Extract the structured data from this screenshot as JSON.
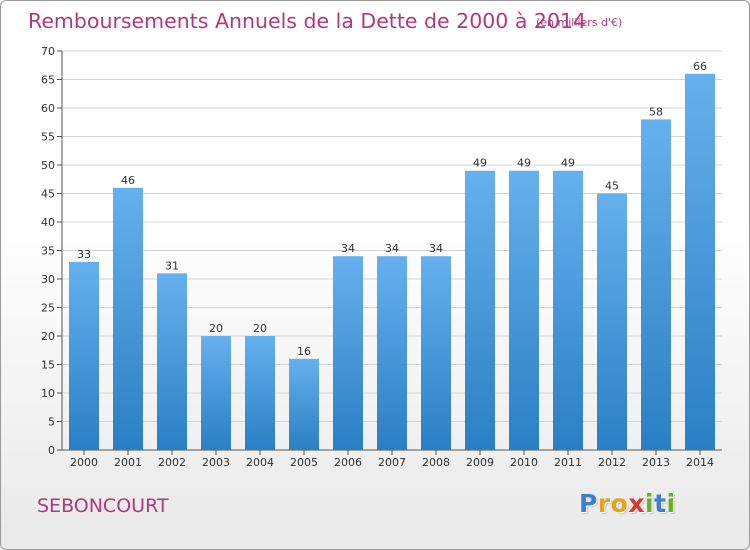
{
  "header": {
    "title": "Remboursements Annuels de la Dette de 2000 à 2014",
    "subtitle": "(en milliers d'€)"
  },
  "footer": {
    "city": "SEBONCOURT",
    "logo_letters": [
      {
        "char": "P",
        "color": "#3b7fd1"
      },
      {
        "char": "r",
        "color": "#e8a21c"
      },
      {
        "char": "o",
        "color": "#e8a21c"
      },
      {
        "char": "x",
        "color": "#d93a2b"
      },
      {
        "char": "i",
        "color": "#6ab023"
      },
      {
        "char": "t",
        "color": "#3b7fd1"
      },
      {
        "char": "i",
        "color": "#6ab023"
      }
    ]
  },
  "colors": {
    "bar_light": "#66b0ee",
    "bar_dark": "#2a7fc4",
    "title": "#b03a78"
  },
  "chart_data": {
    "type": "bar",
    "title": "Remboursements Annuels de la Dette de 2000 à 2014",
    "subtitle": "(en milliers d'€)",
    "categories": [
      "2000",
      "2001",
      "2002",
      "2003",
      "2004",
      "2005",
      "2006",
      "2007",
      "2008",
      "2009",
      "2010",
      "2011",
      "2012",
      "2013",
      "2014"
    ],
    "values": [
      33,
      46,
      31,
      20,
      20,
      16,
      34,
      34,
      34,
      49,
      49,
      49,
      45,
      58,
      66
    ],
    "ylim": [
      0,
      70
    ],
    "yticks": [
      0,
      5,
      10,
      15,
      20,
      25,
      30,
      35,
      40,
      45,
      50,
      55,
      60,
      65,
      70
    ],
    "grid": true,
    "data_labels": true
  }
}
